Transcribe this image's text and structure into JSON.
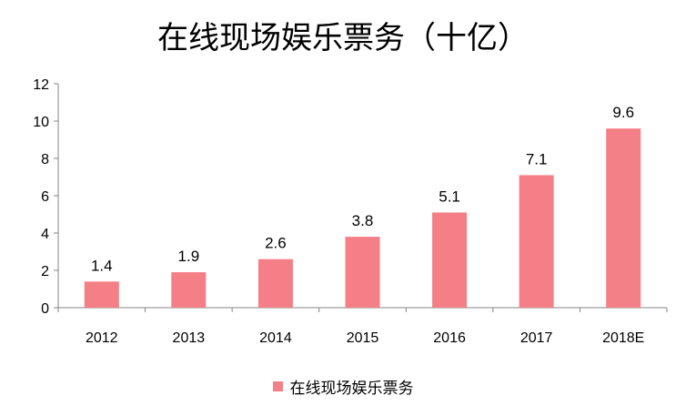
{
  "chart_data": {
    "type": "bar",
    "title": "在线现场娱乐票务（十亿）",
    "categories": [
      "2012",
      "2013",
      "2014",
      "2015",
      "2016",
      "2017",
      "2018E"
    ],
    "series": [
      {
        "name": "在线现场娱乐票务",
        "values": [
          1.4,
          1.9,
          2.6,
          3.8,
          5.1,
          7.1,
          9.6
        ],
        "color": "#F47F86"
      }
    ],
    "ylim": [
      0,
      12
    ],
    "yticks": [
      0,
      2,
      4,
      6,
      8,
      10,
      12
    ],
    "xlabel": "",
    "ylabel": "",
    "grid": false,
    "legend": "bottom"
  }
}
